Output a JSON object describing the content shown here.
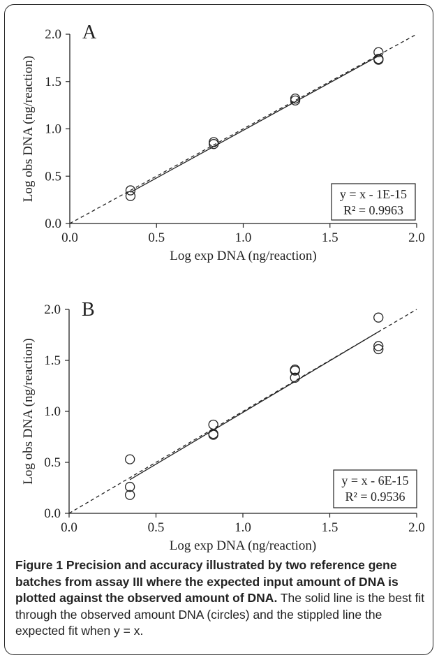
{
  "chart_data": [
    {
      "type": "scatter",
      "panel_label": "A",
      "xlabel": "Log exp DNA (ng/reaction)",
      "ylabel": "Log obs DNA (ng/reaction)",
      "xlim": [
        0.0,
        2.0
      ],
      "ylim": [
        0.0,
        2.0
      ],
      "x_ticks": [
        "0.0",
        "0.5",
        "1.0",
        "1.5",
        "2.0"
      ],
      "y_ticks": [
        "0.0",
        "0.5",
        "1.0",
        "1.5",
        "2.0"
      ],
      "points": [
        {
          "x": 0.35,
          "y": 0.35
        },
        {
          "x": 0.35,
          "y": 0.29
        },
        {
          "x": 0.83,
          "y": 0.86
        },
        {
          "x": 0.83,
          "y": 0.84
        },
        {
          "x": 1.3,
          "y": 1.32
        },
        {
          "x": 1.3,
          "y": 1.3
        },
        {
          "x": 1.78,
          "y": 1.81
        },
        {
          "x": 1.78,
          "y": 1.74
        },
        {
          "x": 1.78,
          "y": 1.73
        }
      ],
      "fit_line": {
        "x": [
          0.35,
          1.78
        ],
        "y": [
          0.33,
          1.77
        ]
      },
      "expected_line": {
        "x": [
          0.0,
          2.0
        ],
        "y": [
          0.0,
          2.0
        ]
      },
      "annotation": [
        "y = x - 1E-15",
        "R² = 0.9963"
      ],
      "legend": "none",
      "grid": false
    },
    {
      "type": "scatter",
      "panel_label": "B",
      "xlabel": "Log exp DNA (ng/reaction)",
      "ylabel": "Log obs DNA (ng/reaction)",
      "xlim": [
        0.0,
        2.0
      ],
      "ylim": [
        0.0,
        2.0
      ],
      "x_ticks": [
        "0.0",
        "0.5",
        "1.0",
        "1.5",
        "2.0"
      ],
      "y_ticks": [
        "0.0",
        "0.5",
        "1.0",
        "1.5",
        "2.0"
      ],
      "points": [
        {
          "x": 0.35,
          "y": 0.53
        },
        {
          "x": 0.35,
          "y": 0.26
        },
        {
          "x": 0.35,
          "y": 0.18
        },
        {
          "x": 0.83,
          "y": 0.87
        },
        {
          "x": 0.83,
          "y": 0.78
        },
        {
          "x": 0.83,
          "y": 0.77
        },
        {
          "x": 1.3,
          "y": 1.41
        },
        {
          "x": 1.3,
          "y": 1.4
        },
        {
          "x": 1.3,
          "y": 1.33
        },
        {
          "x": 1.78,
          "y": 1.92
        },
        {
          "x": 1.78,
          "y": 1.64
        },
        {
          "x": 1.78,
          "y": 1.61
        }
      ],
      "fit_line": {
        "x": [
          0.35,
          1.78
        ],
        "y": [
          0.33,
          1.78
        ]
      },
      "expected_line": {
        "x": [
          0.0,
          2.0
        ],
        "y": [
          0.0,
          2.0
        ]
      },
      "annotation": [
        "y = x - 6E-15",
        "R² = 0.9536"
      ],
      "legend": "none",
      "grid": false
    }
  ],
  "caption": {
    "bold": "Figure 1 Precision and accuracy illustrated by two reference gene batches from assay III where the expected input amount of DNA is plotted against the observed amount of DNA.",
    "text": " The solid line is the best fit through the observed amount DNA (circles) and the stippled line the expected fit when y = x."
  }
}
